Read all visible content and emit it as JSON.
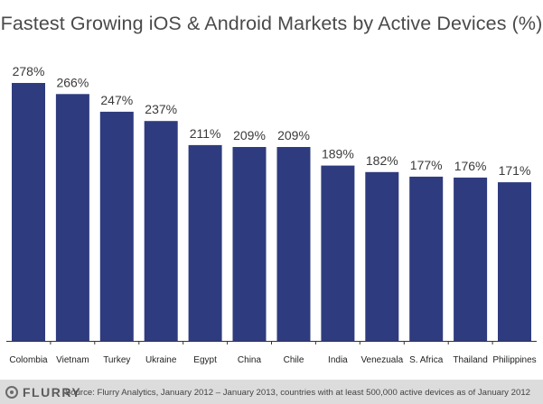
{
  "title": "Fastest Growing iOS & Android Markets by Active Devices (%)",
  "chart_data": {
    "type": "bar",
    "title": "Fastest Growing iOS & Android Markets by Active Devices (%)",
    "categories": [
      "Colombia",
      "Vietnam",
      "Turkey",
      "Ukraine",
      "Egypt",
      "China",
      "Chile",
      "India",
      "Venezuala",
      "S. Africa",
      "Thailand",
      "Philippines"
    ],
    "values": [
      278,
      266,
      247,
      237,
      211,
      209,
      209,
      189,
      182,
      177,
      176,
      171
    ],
    "value_labels": [
      "278%",
      "266%",
      "247%",
      "237%",
      "211%",
      "209%",
      "209%",
      "189%",
      "182%",
      "177%",
      "176%",
      "171%"
    ],
    "xlabel": "",
    "ylabel": "",
    "ylim": [
      0,
      278
    ],
    "grid": false,
    "legend": "none",
    "bar_color": "#2e3b7e"
  },
  "footer": {
    "logo_text": "FLURRY",
    "source": "Source: Flurry Analytics, January 2012 – January 2013, countries with at least 500,000 active devices as of January 2012"
  },
  "colors": {
    "bar": "#2e3b7e",
    "axis": "#333333",
    "footer_bg": "#dcdcdc"
  }
}
